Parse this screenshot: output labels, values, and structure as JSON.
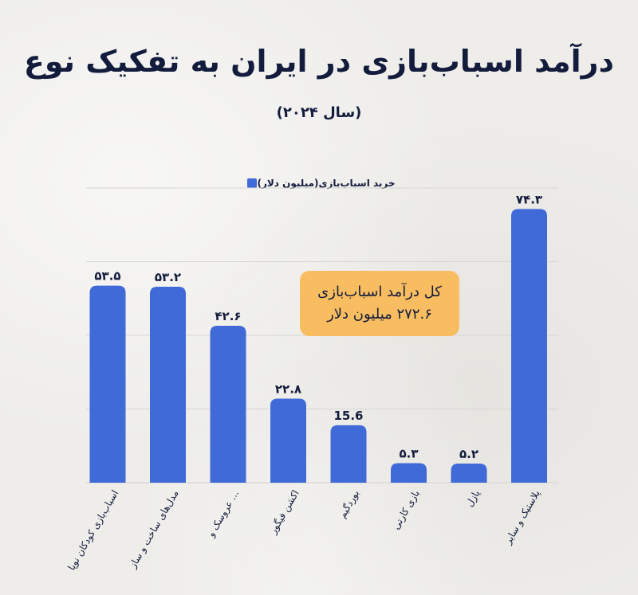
{
  "title": "درآمد اسباب‌بازی در ایران به تفکیک نوع",
  "subtitle": "(سال ۲۰۲۴)",
  "colors": {
    "bar": "#3f6ad8",
    "callout": "#f9bd61",
    "text": "#131c3d",
    "grid": "#d7d6d2"
  },
  "callout": {
    "line1": "کل درآمد اسباب‌بازی",
    "line2": "۲۷۲.۶ میلیون دلار"
  },
  "chart_data": {
    "type": "bar",
    "title": "درآمد اسباب‌بازی در ایران به تفکیک نوع",
    "subtitle": "(سال ۲۰۲۴)",
    "xlabel": "",
    "ylabel": "",
    "ylim": [
      0,
      80
    ],
    "grid": true,
    "legend_position": "top-center",
    "categories": [
      "اسباب‌بازی کودکان نوپا",
      "مدل‌های ساخت و ساز",
      "عروسک و ...",
      "اکشن فیگور",
      "بوردگیم",
      "بازی کارتی",
      "پازل",
      "پلاستیک و سایر"
    ],
    "value_labels": [
      "۵۳.۵",
      "۵۳.۲",
      "۴۲.۶",
      "۲۲.۸",
      "15.6",
      "۵.۳",
      "۵.۲",
      "۷۴.۳"
    ],
    "series": [
      {
        "name": "خرید اسباب‌بازی(میلیون دلار)",
        "values": [
          53.5,
          53.2,
          42.6,
          22.8,
          15.6,
          5.3,
          5.2,
          74.3
        ]
      }
    ]
  }
}
